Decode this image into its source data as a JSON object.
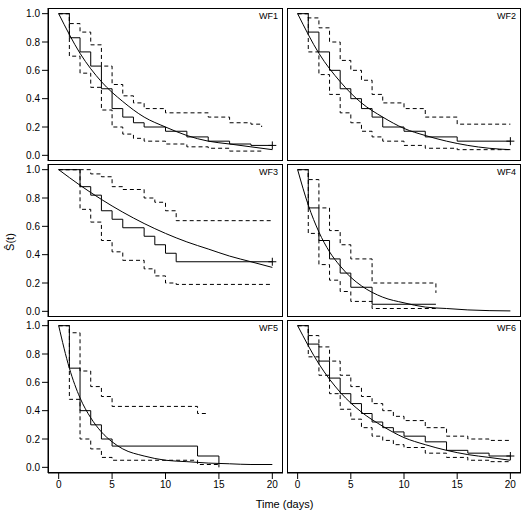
{
  "xlabel": "Time (days)",
  "ylabel": "Ŝ(t)",
  "chart_data": [
    {
      "type": "line",
      "title": "WF1",
      "tick_labels": "y",
      "xlim": [
        -1,
        21
      ],
      "ylim": [
        -0.04,
        1.04
      ],
      "xticks": [
        0,
        5,
        10,
        15,
        20
      ],
      "yticks": [
        {
          "value": 0,
          "label": "0.0"
        },
        0.2,
        0.4,
        0.6,
        0.8,
        {
          "value": 1,
          "label": "1.0"
        }
      ],
      "series": [
        {
          "type": "step",
          "line_style": "solid",
          "color": "#000000",
          "x": [
            0,
            1,
            2,
            3,
            4,
            5,
            6,
            7,
            8,
            10,
            12,
            14,
            16,
            18,
            20
          ],
          "values": [
            1.0,
            0.83,
            0.73,
            0.63,
            0.47,
            0.33,
            0.27,
            0.23,
            0.2,
            0.17,
            0.13,
            0.1,
            0.08,
            0.07,
            0.07
          ]
        },
        {
          "type": "step",
          "line_style": "dashed",
          "color": "#000000",
          "x": [
            0,
            1,
            2,
            3,
            4,
            5,
            6,
            7,
            8,
            10,
            12,
            14,
            16,
            18,
            19
          ],
          "values": [
            1.0,
            0.93,
            0.87,
            0.78,
            0.63,
            0.5,
            0.42,
            0.37,
            0.33,
            0.3,
            0.3,
            0.27,
            0.23,
            0.22,
            0.2
          ]
        },
        {
          "type": "step",
          "line_style": "dashed",
          "color": "#000000",
          "x": [
            0,
            1,
            2,
            3,
            4,
            5,
            6,
            7,
            8,
            10,
            12,
            14,
            16,
            18,
            19
          ],
          "values": [
            1.0,
            0.7,
            0.58,
            0.48,
            0.32,
            0.2,
            0.15,
            0.12,
            0.1,
            0.08,
            0.06,
            0.05,
            0.03,
            0.03,
            0.03
          ]
        },
        {
          "type": "line",
          "line_style": "solid",
          "color": "#000000",
          "x": [
            0,
            2,
            4,
            6,
            8,
            10,
            12,
            14,
            16,
            18,
            20
          ],
          "values": [
            1.0,
            0.72,
            0.52,
            0.38,
            0.27,
            0.2,
            0.14,
            0.1,
            0.08,
            0.06,
            0.04
          ]
        },
        {
          "type": "scatter",
          "marker": "plus",
          "color": "#000000",
          "x": [
            20
          ],
          "values": [
            0.07
          ]
        }
      ]
    },
    {
      "type": "line",
      "title": "WF2",
      "tick_labels": false,
      "xlim": [
        -1,
        21
      ],
      "ylim": [
        -0.04,
        1.04
      ],
      "xticks": [
        0,
        5,
        10,
        15,
        20
      ],
      "yticks": [
        {
          "value": 0,
          "label": "0.0"
        },
        0.2,
        0.4,
        0.6,
        0.8,
        {
          "value": 1,
          "label": "1.0"
        }
      ],
      "series": [
        {
          "type": "step",
          "line_style": "solid",
          "color": "#000000",
          "x": [
            0,
            1,
            2,
            3,
            4,
            5,
            6,
            7,
            8,
            10,
            12,
            15,
            20
          ],
          "values": [
            1.0,
            0.87,
            0.73,
            0.6,
            0.47,
            0.4,
            0.33,
            0.27,
            0.2,
            0.17,
            0.13,
            0.1,
            0.1
          ]
        },
        {
          "type": "step",
          "line_style": "dashed",
          "color": "#000000",
          "x": [
            0,
            1,
            2,
            3,
            4,
            5,
            6,
            7,
            8,
            10,
            12,
            15,
            20
          ],
          "values": [
            1.0,
            0.97,
            0.9,
            0.8,
            0.67,
            0.6,
            0.53,
            0.43,
            0.37,
            0.33,
            0.27,
            0.22,
            0.22
          ]
        },
        {
          "type": "step",
          "line_style": "dashed",
          "color": "#000000",
          "x": [
            0,
            1,
            2,
            3,
            4,
            5,
            6,
            7,
            8,
            10,
            12,
            15,
            20
          ],
          "values": [
            1.0,
            0.73,
            0.57,
            0.43,
            0.3,
            0.23,
            0.17,
            0.13,
            0.1,
            0.07,
            0.05,
            0.04,
            0.04
          ]
        },
        {
          "type": "line",
          "line_style": "solid",
          "color": "#000000",
          "x": [
            0,
            2,
            4,
            6,
            8,
            10,
            12,
            14,
            16,
            18,
            20
          ],
          "values": [
            1.0,
            0.72,
            0.52,
            0.37,
            0.27,
            0.19,
            0.14,
            0.1,
            0.07,
            0.05,
            0.04
          ]
        },
        {
          "type": "scatter",
          "marker": "plus",
          "color": "#000000",
          "x": [
            20
          ],
          "values": [
            0.1
          ]
        }
      ]
    },
    {
      "type": "line",
      "title": "WF3",
      "tick_labels": "y",
      "xlim": [
        -1,
        21
      ],
      "ylim": [
        -0.04,
        1.04
      ],
      "xticks": [
        0,
        5,
        10,
        15,
        20
      ],
      "yticks": [
        {
          "value": 0,
          "label": "0.0"
        },
        0.2,
        0.4,
        0.6,
        0.8,
        {
          "value": 1,
          "label": "1.0"
        }
      ],
      "series": [
        {
          "type": "step",
          "line_style": "solid",
          "color": "#000000",
          "x": [
            0,
            2,
            3,
            4,
            5,
            6,
            8,
            9,
            10,
            11,
            20
          ],
          "values": [
            1.0,
            0.88,
            0.82,
            0.71,
            0.65,
            0.59,
            0.53,
            0.47,
            0.41,
            0.35,
            0.35
          ]
        },
        {
          "type": "step",
          "line_style": "dashed",
          "color": "#000000",
          "x": [
            0,
            2,
            3,
            4,
            5,
            6,
            8,
            9,
            10,
            11,
            20
          ],
          "values": [
            1.0,
            1.0,
            0.97,
            0.95,
            0.88,
            0.86,
            0.8,
            0.77,
            0.71,
            0.64,
            0.64
          ]
        },
        {
          "type": "step",
          "line_style": "dashed",
          "color": "#000000",
          "x": [
            0,
            2,
            3,
            4,
            5,
            6,
            8,
            9,
            10,
            11,
            20
          ],
          "values": [
            1.0,
            0.72,
            0.63,
            0.5,
            0.42,
            0.36,
            0.3,
            0.25,
            0.2,
            0.19,
            0.19
          ]
        },
        {
          "type": "line",
          "line_style": "solid",
          "color": "#000000",
          "x": [
            0,
            2,
            4,
            6,
            8,
            10,
            12,
            14,
            16,
            18,
            20
          ],
          "values": [
            1.0,
            0.89,
            0.79,
            0.7,
            0.62,
            0.55,
            0.49,
            0.44,
            0.39,
            0.35,
            0.31
          ]
        },
        {
          "type": "scatter",
          "marker": "plus",
          "color": "#000000",
          "x": [
            20
          ],
          "values": [
            0.35
          ]
        }
      ]
    },
    {
      "type": "line",
      "title": "WF4",
      "tick_labels": false,
      "xlim": [
        -1,
        21
      ],
      "ylim": [
        -0.04,
        1.04
      ],
      "xticks": [
        0,
        5,
        10,
        15,
        20
      ],
      "yticks": [
        {
          "value": 0,
          "label": "0.0"
        },
        0.2,
        0.4,
        0.6,
        0.8,
        {
          "value": 1,
          "label": "1.0"
        }
      ],
      "series": [
        {
          "type": "step",
          "line_style": "solid",
          "color": "#000000",
          "x": [
            0,
            1,
            2,
            3,
            4,
            5,
            7,
            13
          ],
          "values": [
            1.0,
            0.73,
            0.5,
            0.37,
            0.27,
            0.17,
            0.05,
            0.05
          ]
        },
        {
          "type": "step",
          "line_style": "dashed",
          "color": "#000000",
          "x": [
            0,
            1,
            2,
            3,
            4,
            5,
            7,
            13
          ],
          "values": [
            1.0,
            0.93,
            0.73,
            0.57,
            0.47,
            0.37,
            0.2,
            0.13
          ]
        },
        {
          "type": "step",
          "line_style": "dashed",
          "color": "#000000",
          "x": [
            0,
            1,
            2,
            3,
            4,
            5,
            7,
            13
          ],
          "values": [
            1.0,
            0.55,
            0.33,
            0.22,
            0.14,
            0.07,
            0.02,
            0.02
          ]
        },
        {
          "type": "line",
          "line_style": "solid",
          "color": "#000000",
          "x": [
            0,
            1,
            2,
            3,
            4,
            5,
            6,
            8,
            10,
            12,
            14,
            16,
            18,
            20
          ],
          "values": [
            1.0,
            0.75,
            0.56,
            0.42,
            0.32,
            0.24,
            0.18,
            0.1,
            0.06,
            0.03,
            0.02,
            0.01,
            0.005,
            0.003
          ]
        }
      ]
    },
    {
      "type": "line",
      "title": "WF5",
      "tick_labels": true,
      "xlim": [
        -1,
        21
      ],
      "ylim": [
        -0.04,
        1.04
      ],
      "xticks": [
        0,
        5,
        10,
        15,
        20
      ],
      "yticks": [
        {
          "value": 0,
          "label": "0.0"
        },
        0.2,
        0.4,
        0.6,
        0.8,
        {
          "value": 1,
          "label": "1.0"
        }
      ],
      "series": [
        {
          "type": "step",
          "line_style": "solid",
          "color": "#000000",
          "x": [
            0,
            1,
            2,
            3,
            4,
            5,
            13,
            15
          ],
          "values": [
            1.0,
            0.7,
            0.4,
            0.3,
            0.2,
            0.15,
            0.08,
            0.0
          ]
        },
        {
          "type": "step",
          "line_style": "dashed",
          "color": "#000000",
          "x": [
            0,
            1,
            2,
            3,
            4,
            5,
            13,
            14
          ],
          "values": [
            1.0,
            0.95,
            0.68,
            0.57,
            0.5,
            0.43,
            0.38,
            0.38
          ]
        },
        {
          "type": "step",
          "line_style": "dashed",
          "color": "#000000",
          "x": [
            0,
            1,
            2,
            3,
            4,
            5,
            13,
            15
          ],
          "values": [
            1.0,
            0.48,
            0.2,
            0.13,
            0.07,
            0.05,
            0.02,
            0.02
          ]
        },
        {
          "type": "line",
          "line_style": "solid",
          "color": "#000000",
          "x": [
            0,
            1,
            2,
            3,
            4,
            5,
            6,
            8,
            10,
            12,
            14,
            16,
            18,
            20
          ],
          "values": [
            1.0,
            0.7,
            0.49,
            0.35,
            0.25,
            0.18,
            0.13,
            0.08,
            0.05,
            0.04,
            0.03,
            0.025,
            0.02,
            0.02
          ]
        }
      ]
    },
    {
      "type": "line",
      "title": "WF6",
      "tick_labels": "x",
      "xlim": [
        -1,
        21
      ],
      "ylim": [
        -0.04,
        1.04
      ],
      "xticks": [
        0,
        5,
        10,
        15,
        20
      ],
      "yticks": [
        {
          "value": 0,
          "label": "0.0"
        },
        0.2,
        0.4,
        0.6,
        0.8,
        {
          "value": 1,
          "label": "1.0"
        }
      ],
      "series": [
        {
          "type": "step",
          "line_style": "solid",
          "color": "#000000",
          "x": [
            0,
            1,
            2,
            3,
            4,
            5,
            6,
            7,
            8,
            9,
            10,
            12,
            14,
            16,
            18,
            20
          ],
          "values": [
            1.0,
            0.87,
            0.75,
            0.63,
            0.52,
            0.45,
            0.38,
            0.32,
            0.28,
            0.25,
            0.22,
            0.18,
            0.12,
            0.1,
            0.08,
            0.08
          ]
        },
        {
          "type": "step",
          "line_style": "dashed",
          "color": "#000000",
          "x": [
            0,
            1,
            2,
            3,
            4,
            5,
            6,
            7,
            8,
            9,
            10,
            12,
            14,
            16,
            18,
            20
          ],
          "values": [
            1.0,
            0.93,
            0.85,
            0.75,
            0.65,
            0.57,
            0.5,
            0.45,
            0.4,
            0.36,
            0.33,
            0.28,
            0.22,
            0.2,
            0.19,
            0.19
          ]
        },
        {
          "type": "step",
          "line_style": "dashed",
          "color": "#000000",
          "x": [
            0,
            1,
            2,
            3,
            4,
            5,
            6,
            7,
            8,
            9,
            10,
            12,
            14,
            16,
            18,
            20
          ],
          "values": [
            1.0,
            0.78,
            0.65,
            0.52,
            0.41,
            0.34,
            0.28,
            0.22,
            0.19,
            0.16,
            0.14,
            0.1,
            0.07,
            0.05,
            0.04,
            0.04
          ]
        },
        {
          "type": "line",
          "line_style": "solid",
          "color": "#000000",
          "x": [
            0,
            2,
            4,
            6,
            8,
            10,
            12,
            14,
            16,
            18,
            20
          ],
          "values": [
            1.0,
            0.73,
            0.53,
            0.39,
            0.29,
            0.21,
            0.16,
            0.12,
            0.09,
            0.07,
            0.05
          ]
        },
        {
          "type": "scatter",
          "marker": "plus",
          "color": "#000000",
          "x": [
            20
          ],
          "values": [
            0.08
          ]
        }
      ]
    }
  ]
}
